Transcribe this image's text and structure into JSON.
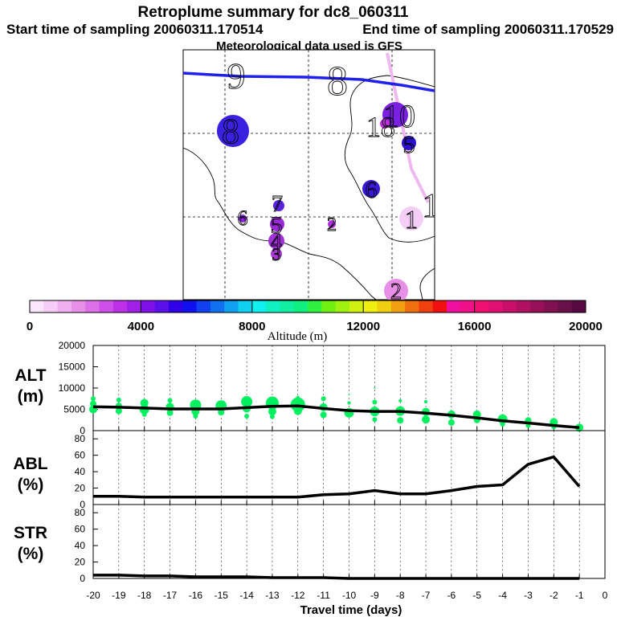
{
  "title": "Retroplume summary for dc8_060311",
  "start_time_label": "Start time of sampling 20060311.170514",
  "end_time_label": "End time of sampling 20060311.170529",
  "met_label": "Meteorological data used is GFS",
  "chart_data": {
    "type": "composite",
    "map": {
      "trajectory_color": "#2020ee",
      "secondary_track_color": "#f0b8f0",
      "markers": [
        {
          "label": "9",
          "day": -9,
          "color": null
        },
        {
          "label": "8",
          "day": -8,
          "color": null
        },
        {
          "label": "10",
          "day": -10,
          "color": "#7a20e0"
        },
        {
          "label": "18",
          "day": -18,
          "color": "#c030e0"
        },
        {
          "label": "8",
          "day": -8,
          "color": "#3a20e0"
        },
        {
          "label": "5",
          "day": -5,
          "color": "#2a10d0"
        },
        {
          "label": "6",
          "day": -6,
          "color": "#3a18d8"
        },
        {
          "label": "7",
          "day": -7,
          "color": "#5a22e0"
        },
        {
          "label": "6",
          "day": -6,
          "color": "#8a20e0"
        },
        {
          "label": "5",
          "day": -5,
          "color": "#9a2ad8"
        },
        {
          "label": "2",
          "day": -2,
          "color": "#b030e0"
        },
        {
          "label": "4",
          "day": -4,
          "color": "#a030d8"
        },
        {
          "label": "3",
          "day": -3,
          "color": "#a838d0"
        },
        {
          "label": "1",
          "day": -1,
          "color": "#f4cef4"
        },
        {
          "label": "1",
          "day": -1,
          "color": null
        },
        {
          "label": "2",
          "day": -2,
          "color": "#e890e8"
        }
      ]
    },
    "colorbar": {
      "label": "Altitude (m)",
      "range": [
        0,
        20000
      ],
      "ticks": [
        "0",
        "4000",
        "8000",
        "12000",
        "16000",
        "20000"
      ],
      "colors": [
        "#fbe6fb",
        "#f6cdf6",
        "#f0b0f0",
        "#e890e8",
        "#dd70e8",
        "#cf50e8",
        "#bd30e8",
        "#a020e8",
        "#8010e8",
        "#5a10e8",
        "#3000e8",
        "#1010ee",
        "#1040f0",
        "#1070f0",
        "#10a0f0",
        "#10d0f0",
        "#10f0f0",
        "#10f0c0",
        "#10f0a0",
        "#10f080",
        "#30f040",
        "#70f010",
        "#a0f010",
        "#d0f010",
        "#f0f010",
        "#f0d010",
        "#f0a010",
        "#f07010",
        "#f04010",
        "#f01010",
        "#f010a0",
        "#f01088",
        "#f01070",
        "#e01070",
        "#c81068",
        "#b01060",
        "#981058",
        "#801050",
        "#681048",
        "#580840"
      ]
    },
    "x_ticks": [
      "-20",
      "-19",
      "-18",
      "-17",
      "-16",
      "-15",
      "-14",
      "-13",
      "-12",
      "-11",
      "-10",
      "-9",
      "-8",
      "-7",
      "-6",
      "-5",
      "-4",
      "-3",
      "-2",
      "-1",
      "0"
    ],
    "xlabel": "Travel time (days)",
    "xlim": [
      -20,
      0
    ],
    "panels": [
      {
        "id": "alt",
        "label_line1": "ALT",
        "label_line2": "(m)",
        "ylim": [
          0,
          20000
        ],
        "y_ticks": [
          "0",
          "5000",
          "10000",
          "15000",
          "20000"
        ],
        "y_tick_values": [
          0,
          5000,
          10000,
          15000,
          20000
        ],
        "line": {
          "x": [
            -20,
            -19,
            -18,
            -17,
            -16,
            -15,
            -14,
            -13,
            -12,
            -11,
            -10,
            -9,
            -8,
            -7,
            -6,
            -5,
            -4,
            -3,
            -2,
            -1
          ],
          "y": [
            5600,
            5500,
            5300,
            5100,
            5100,
            5100,
            5400,
            5700,
            5800,
            5200,
            4700,
            4500,
            4500,
            4100,
            3600,
            3000,
            2300,
            1800,
            1200,
            700
          ]
        },
        "dots_color": "#00f060",
        "dots": [
          {
            "x": -20,
            "y": 7500,
            "s": 3
          },
          {
            "x": -20,
            "y": 6300,
            "s": 4
          },
          {
            "x": -20,
            "y": 5000,
            "s": 5
          },
          {
            "x": -19,
            "y": 7200,
            "s": 3
          },
          {
            "x": -19,
            "y": 5800,
            "s": 4
          },
          {
            "x": -19,
            "y": 4600,
            "s": 4
          },
          {
            "x": -18,
            "y": 6500,
            "s": 5
          },
          {
            "x": -18,
            "y": 5000,
            "s": 6
          },
          {
            "x": -18,
            "y": 3800,
            "s": 3
          },
          {
            "x": -17,
            "y": 7100,
            "s": 3
          },
          {
            "x": -17,
            "y": 5600,
            "s": 5
          },
          {
            "x": -17,
            "y": 4200,
            "s": 4
          },
          {
            "x": -16,
            "y": 6000,
            "s": 7
          },
          {
            "x": -16,
            "y": 4500,
            "s": 5
          },
          {
            "x": -16,
            "y": 3400,
            "s": 3
          },
          {
            "x": -15,
            "y": 5800,
            "s": 7
          },
          {
            "x": -15,
            "y": 4300,
            "s": 4
          },
          {
            "x": -14,
            "y": 6800,
            "s": 7
          },
          {
            "x": -14,
            "y": 5200,
            "s": 5
          },
          {
            "x": -14,
            "y": 3400,
            "s": 3
          },
          {
            "x": -13,
            "y": 6500,
            "s": 8
          },
          {
            "x": -13,
            "y": 4500,
            "s": 5
          },
          {
            "x": -13,
            "y": 3300,
            "s": 3
          },
          {
            "x": -12,
            "y": 7800,
            "s": 2
          },
          {
            "x": -12,
            "y": 6100,
            "s": 9
          },
          {
            "x": -12,
            "y": 4600,
            "s": 5
          },
          {
            "x": -11,
            "y": 7500,
            "s": 3
          },
          {
            "x": -11,
            "y": 5500,
            "s": 5
          },
          {
            "x": -11,
            "y": 3700,
            "s": 4
          },
          {
            "x": -10,
            "y": 8500,
            "s": 1
          },
          {
            "x": -10,
            "y": 6500,
            "s": 2
          },
          {
            "x": -10,
            "y": 4200,
            "s": 6
          },
          {
            "x": -9,
            "y": 10000,
            "s": 1
          },
          {
            "x": -9,
            "y": 6700,
            "s": 3
          },
          {
            "x": -9,
            "y": 4500,
            "s": 6
          },
          {
            "x": -9,
            "y": 2600,
            "s": 3
          },
          {
            "x": -8,
            "y": 7000,
            "s": 2
          },
          {
            "x": -8,
            "y": 4600,
            "s": 6
          },
          {
            "x": -8,
            "y": 2400,
            "s": 4
          },
          {
            "x": -7,
            "y": 6800,
            "s": 2
          },
          {
            "x": -7,
            "y": 4400,
            "s": 5
          },
          {
            "x": -7,
            "y": 2600,
            "s": 5
          },
          {
            "x": -6,
            "y": 3800,
            "s": 5
          },
          {
            "x": -6,
            "y": 1900,
            "s": 4
          },
          {
            "x": -5,
            "y": 3800,
            "s": 5
          },
          {
            "x": -5,
            "y": 2500,
            "s": 4
          },
          {
            "x": -4,
            "y": 2700,
            "s": 6
          },
          {
            "x": -4,
            "y": 1500,
            "s": 3
          },
          {
            "x": -3,
            "y": 2400,
            "s": 4
          },
          {
            "x": -3,
            "y": 1200,
            "s": 3
          },
          {
            "x": -2,
            "y": 2000,
            "s": 5
          },
          {
            "x": -2,
            "y": 900,
            "s": 3
          },
          {
            "x": -1,
            "y": 700,
            "s": 5
          }
        ]
      },
      {
        "id": "abl",
        "label_line1": "ABL",
        "label_line2": "(%)",
        "ylim": [
          0,
          90
        ],
        "y_ticks": [
          "0",
          "20",
          "40",
          "60",
          "80"
        ],
        "y_tick_values": [
          0,
          20,
          40,
          60,
          80
        ],
        "line": {
          "x": [
            -20,
            -19,
            -18,
            -17,
            -16,
            -15,
            -14,
            -13,
            -12,
            -11,
            -10,
            -9,
            -8,
            -7,
            -6,
            -5,
            -4,
            -3,
            -2,
            -1
          ],
          "y": [
            10,
            10,
            9,
            9,
            9,
            9,
            9,
            9,
            9,
            12,
            13,
            17,
            13,
            13,
            17,
            22,
            24,
            49,
            58,
            22
          ]
        }
      },
      {
        "id": "str",
        "label_line1": "STR",
        "label_line2": "(%)",
        "ylim": [
          0,
          90
        ],
        "y_ticks": [
          "0",
          "20",
          "40",
          "60",
          "80"
        ],
        "y_tick_values": [
          0,
          20,
          40,
          60,
          80
        ],
        "line": {
          "x": [
            -20,
            -19,
            -18,
            -17,
            -16,
            -15,
            -14,
            -13,
            -12,
            -11,
            -10,
            -9,
            -8,
            -7,
            -6,
            -5,
            -4,
            -3,
            -2,
            -1
          ],
          "y": [
            4,
            4,
            3,
            3,
            2,
            2,
            2,
            1,
            1,
            1,
            0,
            0,
            0,
            0,
            0,
            0,
            0,
            0,
            0,
            0
          ]
        }
      }
    ]
  }
}
